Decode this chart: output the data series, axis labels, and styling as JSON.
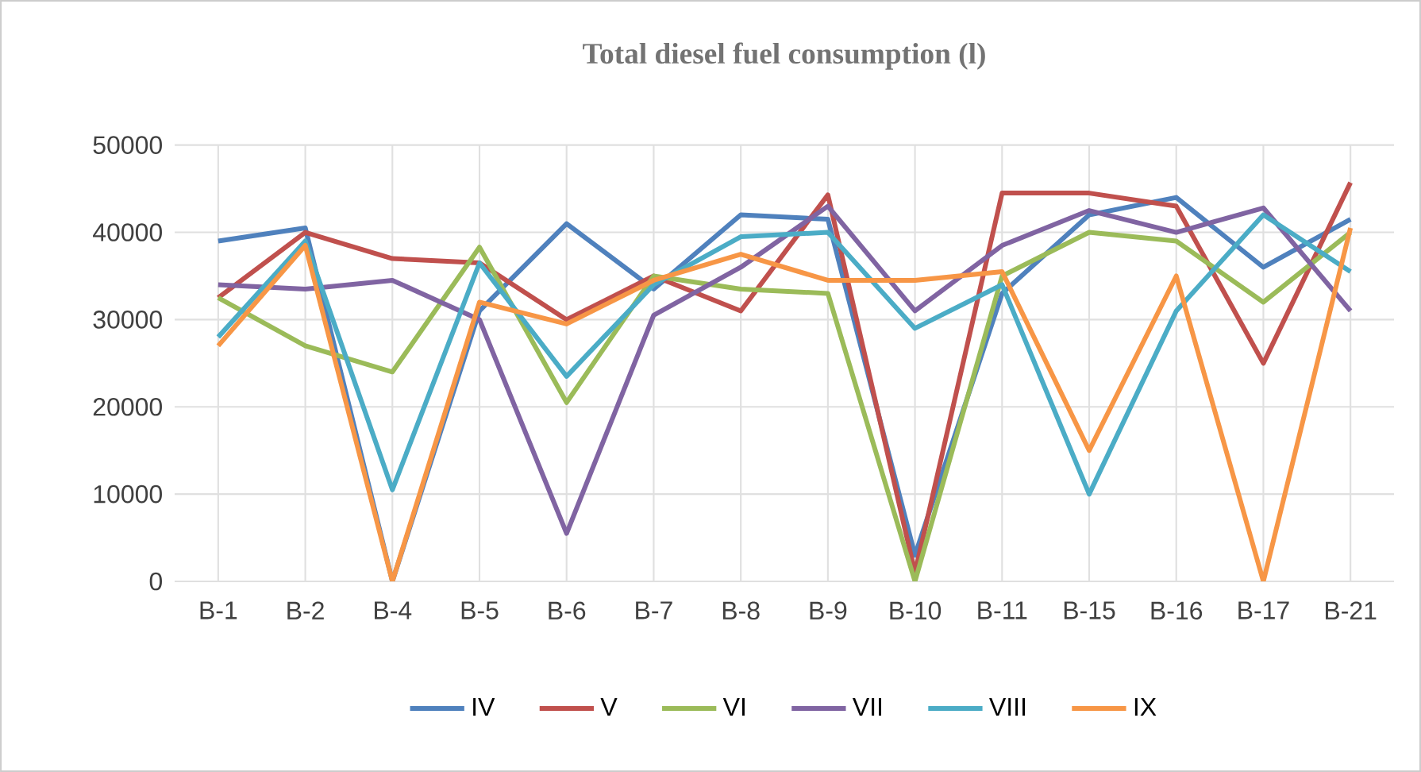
{
  "chart_data": {
    "type": "line",
    "title": "Total diesel fuel consumption (l)",
    "categories": [
      "B-1",
      "B-2",
      "B-4",
      "B-5",
      "B-6",
      "B-7",
      "B-8",
      "B-9",
      "B-10",
      "B-11",
      "B-15",
      "B-16",
      "B-17",
      "B-21"
    ],
    "series": [
      {
        "name": "IV",
        "color": "#4f81bd",
        "values": [
          39000,
          40500,
          0,
          31000,
          41000,
          33500,
          42000,
          41500,
          3000,
          33000,
          42000,
          44000,
          36000,
          41500
        ]
      },
      {
        "name": "V",
        "color": "#c0504d",
        "values": [
          32500,
          40000,
          37000,
          36500,
          30000,
          35000,
          31000,
          44300,
          1000,
          44500,
          44500,
          43000,
          25000,
          45700
        ]
      },
      {
        "name": "VI",
        "color": "#9bbb59",
        "values": [
          32500,
          27000,
          24000,
          38300,
          20500,
          35000,
          33500,
          33000,
          0,
          35000,
          40000,
          39000,
          32000,
          40000
        ]
      },
      {
        "name": "VII",
        "color": "#8064a2",
        "values": [
          34000,
          33500,
          34500,
          30000,
          5500,
          30500,
          36000,
          43000,
          31000,
          38500,
          42500,
          40000,
          42800,
          31000
        ]
      },
      {
        "name": "VIII",
        "color": "#4bacc6",
        "values": [
          28000,
          39000,
          10500,
          36500,
          23500,
          34000,
          39500,
          40000,
          29000,
          34000,
          10000,
          31000,
          42000,
          35500
        ]
      },
      {
        "name": "IX",
        "color": "#f79646",
        "values": [
          27000,
          38500,
          0,
          32000,
          29500,
          34500,
          37500,
          34500,
          34500,
          35500,
          15000,
          35000,
          0,
          40500
        ]
      }
    ],
    "ylim": [
      0,
      50000
    ],
    "yticks": [
      0,
      10000,
      20000,
      30000,
      40000,
      50000
    ],
    "grid": true,
    "legend": "bottom",
    "marker": "none",
    "line_style": "solid"
  }
}
